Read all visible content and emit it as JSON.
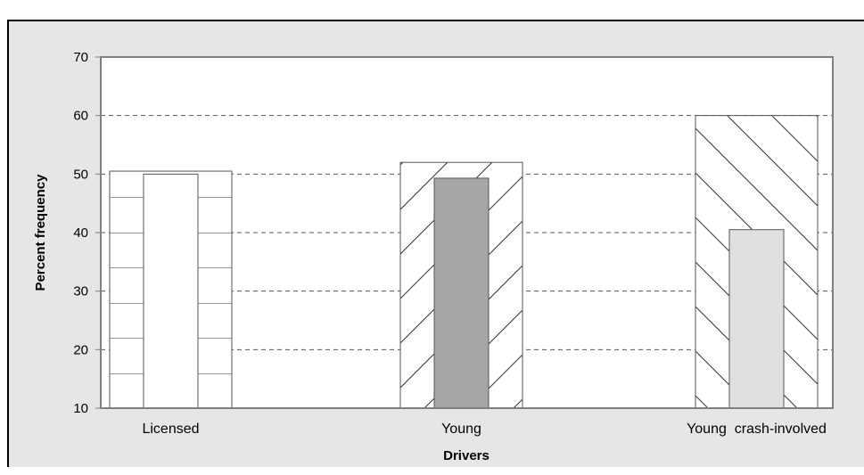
{
  "chart_data": {
    "type": "bar",
    "title": "",
    "xlabel": "Drivers",
    "ylabel": "Percent frequency",
    "ylim": [
      10,
      70
    ],
    "yticks": [
      10,
      20,
      30,
      40,
      50,
      60,
      70
    ],
    "grid": "horizontal-dashed",
    "categories": [
      "Licensed",
      "Young",
      "Young  crash-involved"
    ],
    "series": [
      {
        "values": [
          50.5,
          52,
          60
        ],
        "pattern": "horizontal-lines",
        "fill": "#ffffff"
      },
      {
        "values": [
          50,
          49.3,
          40.5
        ],
        "fill": [
          "#ffffff",
          "#a6a6a6",
          "#e0e0e0"
        ]
      }
    ]
  },
  "colors": {
    "background": "#e6e6e6",
    "plot_area": "#ffffff",
    "grid": "#555555",
    "axis": "#808080"
  }
}
